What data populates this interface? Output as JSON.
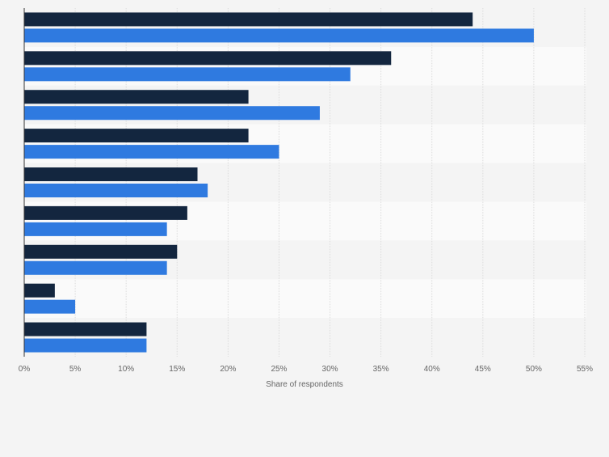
{
  "chart_data": {
    "type": "bar",
    "orientation": "horizontal",
    "categories": [
      "",
      "",
      "",
      "",
      "",
      "",
      "",
      "",
      ""
    ],
    "series": [
      {
        "name": "",
        "color": "#13263f",
        "values": [
          44,
          36,
          22,
          22,
          17,
          16,
          15,
          3,
          12
        ]
      },
      {
        "name": "",
        "color": "#2f7ae0",
        "values": [
          50,
          32,
          29,
          25,
          18,
          14,
          14,
          5,
          12
        ]
      }
    ],
    "xlabel": "Share of respondents",
    "ylabel": "",
    "xlim": [
      0,
      55
    ],
    "ticks": [
      0,
      5,
      10,
      15,
      20,
      25,
      30,
      35,
      40,
      45,
      50,
      55
    ],
    "tick_labels": [
      "0%",
      "5%",
      "10%",
      "15%",
      "20%",
      "25%",
      "30%",
      "35%",
      "40%",
      "45%",
      "50%",
      "55%"
    ],
    "grid": true,
    "legend": "none"
  }
}
